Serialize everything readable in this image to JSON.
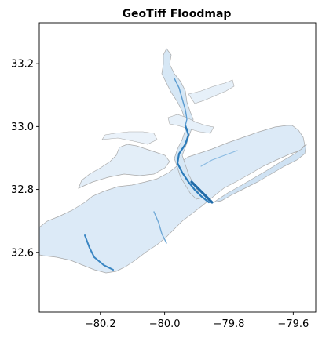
{
  "chart_data": {
    "type": "heatmap",
    "title": "GeoTiff Floodmap",
    "xlabel": "",
    "ylabel": "",
    "xlim": [
      -80.39,
      -79.53
    ],
    "ylim": [
      32.41,
      33.33
    ],
    "xticks": [
      -80.2,
      -80.0,
      -79.8,
      -79.6
    ],
    "xtick_labels": [
      "−80.2",
      "−80.0",
      "−79.8",
      "−79.6"
    ],
    "yticks": [
      32.6,
      32.8,
      33.0,
      33.2
    ],
    "ytick_labels": [
      "32.6",
      "32.8",
      "33.0",
      "33.2"
    ],
    "grid": false,
    "colormap": "Blues",
    "colors": {
      "coastline": "#9a9a9a",
      "shallow_water": "#dbe9f6",
      "deep_channel": "#2b7bba",
      "frame": "#000000",
      "background": "#ffffff"
    }
  }
}
